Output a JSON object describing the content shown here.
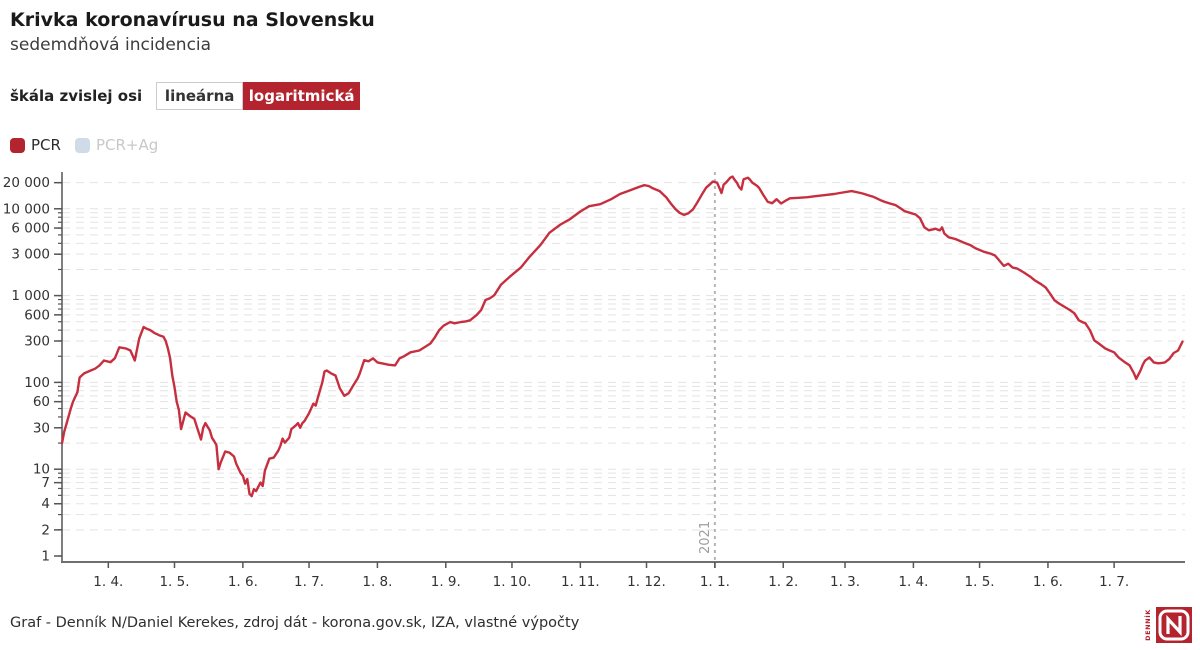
{
  "header": {
    "title": "Krivka koronavírusu na Slovensku",
    "subtitle": "sedemdňová incidencia"
  },
  "scale_toggle": {
    "label": "škála zvislej osi",
    "options": [
      {
        "label": "lineárna",
        "active": false
      },
      {
        "label": "logaritmická",
        "active": true
      }
    ]
  },
  "legend": [
    {
      "label": "PCR",
      "color": "#b3242f",
      "active": true
    },
    {
      "label": "PCR+Ag",
      "color": "#cfdce8",
      "active": false
    }
  ],
  "footer": {
    "credit": "Graf - Denník N/Daniel Kerekes, zdroj dát - korona.gov.sk, IZA, vlastné výpočty"
  },
  "logo": {
    "brand": "DENNÍK",
    "letter": "N",
    "color": "#b3242f"
  },
  "colors": {
    "brand_red": "#b3242f",
    "line_red": "#c62f3f",
    "grid": "#e3e3e3",
    "axis": "#6f6f6f",
    "tick_text": "#333333",
    "year_line": "#b5b5b5",
    "year_text": "#9e9e9e"
  },
  "chart_data": {
    "type": "line",
    "y_scale": "log",
    "grid": true,
    "x_start_date": "2020-03-11",
    "x_end_date": "2021-08-01",
    "ylim": [
      1,
      26000
    ],
    "y_ticks": [
      {
        "v": 1,
        "label": "1"
      },
      {
        "v": 2,
        "label": "2"
      },
      {
        "v": 4,
        "label": "4"
      },
      {
        "v": 7,
        "label": "7"
      },
      {
        "v": 10,
        "label": "10"
      },
      {
        "v": 30,
        "label": "30"
      },
      {
        "v": 60,
        "label": "60"
      },
      {
        "v": 100,
        "label": "100"
      },
      {
        "v": 300,
        "label": "300"
      },
      {
        "v": 600,
        "label": "600"
      },
      {
        "v": 1000,
        "label": "1 000"
      },
      {
        "v": 3000,
        "label": "3 000"
      },
      {
        "v": 6000,
        "label": "6 000"
      },
      {
        "v": 10000,
        "label": "10 000"
      },
      {
        "v": 20000,
        "label": "20 000"
      }
    ],
    "x_ticks": [
      {
        "day": 21,
        "label": "1. 4."
      },
      {
        "day": 51,
        "label": "1. 5."
      },
      {
        "day": 82,
        "label": "1. 6."
      },
      {
        "day": 112,
        "label": "1. 7."
      },
      {
        "day": 143,
        "label": "1. 8."
      },
      {
        "day": 174,
        "label": "1. 9."
      },
      {
        "day": 204,
        "label": "1. 10."
      },
      {
        "day": 235,
        "label": "1. 11."
      },
      {
        "day": 265,
        "label": "1. 12."
      },
      {
        "day": 296,
        "label": "1. 1."
      },
      {
        "day": 327,
        "label": "1. 2."
      },
      {
        "day": 355,
        "label": "1. 3."
      },
      {
        "day": 386,
        "label": "1. 4."
      },
      {
        "day": 416,
        "label": "1. 5."
      },
      {
        "day": 447,
        "label": "1. 6."
      },
      {
        "day": 477,
        "label": "1. 7."
      }
    ],
    "year_marker": {
      "label": "2021",
      "day": 296
    },
    "series": [
      {
        "name": "PCR",
        "color": "#c62f3f",
        "points": [
          [
            0,
            20
          ],
          [
            1,
            27
          ],
          [
            2,
            33
          ],
          [
            4,
            50
          ],
          [
            5,
            60
          ],
          [
            6,
            68
          ],
          [
            7,
            77
          ],
          [
            8,
            114
          ],
          [
            10,
            127
          ],
          [
            13,
            137
          ],
          [
            15,
            144
          ],
          [
            17,
            157
          ],
          [
            19,
            179
          ],
          [
            22,
            171
          ],
          [
            24,
            190
          ],
          [
            26,
            254
          ],
          [
            29,
            246
          ],
          [
            31,
            233
          ],
          [
            33,
            179
          ],
          [
            35,
            320
          ],
          [
            37,
            435
          ],
          [
            38,
            420
          ],
          [
            40,
            400
          ],
          [
            42,
            370
          ],
          [
            44,
            350
          ],
          [
            46,
            335
          ],
          [
            47,
            300
          ],
          [
            48,
            246
          ],
          [
            49,
            190
          ],
          [
            50,
            120
          ],
          [
            51,
            88
          ],
          [
            52,
            60
          ],
          [
            53,
            48
          ],
          [
            54,
            29
          ],
          [
            56,
            45
          ],
          [
            58,
            41
          ],
          [
            60,
            38
          ],
          [
            63,
            22
          ],
          [
            64,
            30
          ],
          [
            65,
            34
          ],
          [
            67,
            28
          ],
          [
            68,
            23
          ],
          [
            69,
            21
          ],
          [
            70,
            19
          ],
          [
            71,
            10
          ],
          [
            72,
            12
          ],
          [
            74,
            16
          ],
          [
            76,
            15.5
          ],
          [
            78,
            14
          ],
          [
            79,
            11.5
          ],
          [
            81,
            9
          ],
          [
            82,
            8.4
          ],
          [
            83,
            6.8
          ],
          [
            84,
            7.7
          ],
          [
            85,
            5.2
          ],
          [
            86,
            4.9
          ],
          [
            87,
            5.9
          ],
          [
            88,
            5.6
          ],
          [
            90,
            7
          ],
          [
            91,
            6.4
          ],
          [
            92,
            9.6
          ],
          [
            94,
            13.2
          ],
          [
            96,
            13.6
          ],
          [
            98,
            16.3
          ],
          [
            99,
            18.6
          ],
          [
            100,
            22.5
          ],
          [
            101,
            20.2
          ],
          [
            103,
            23
          ],
          [
            104,
            29
          ],
          [
            106,
            32
          ],
          [
            107,
            34
          ],
          [
            108,
            30
          ],
          [
            109,
            34
          ],
          [
            110,
            36
          ],
          [
            112,
            44
          ],
          [
            114,
            57
          ],
          [
            115,
            54
          ],
          [
            116,
            67
          ],
          [
            118,
            100
          ],
          [
            119,
            133
          ],
          [
            120,
            137
          ],
          [
            122,
            127
          ],
          [
            124,
            120
          ],
          [
            126,
            85
          ],
          [
            128,
            70
          ],
          [
            130,
            75
          ],
          [
            132,
            92
          ],
          [
            134,
            111
          ],
          [
            135,
            127
          ],
          [
            137,
            180
          ],
          [
            139,
            175
          ],
          [
            141,
            189
          ],
          [
            143,
            170
          ],
          [
            145,
            166
          ],
          [
            148,
            160
          ],
          [
            151,
            157
          ],
          [
            153,
            189
          ],
          [
            155,
            200
          ],
          [
            158,
            222
          ],
          [
            162,
            233
          ],
          [
            165,
            260
          ],
          [
            167,
            281
          ],
          [
            169,
            330
          ],
          [
            171,
            400
          ],
          [
            173,
            450
          ],
          [
            176,
            497
          ],
          [
            178,
            480
          ],
          [
            181,
            497
          ],
          [
            183,
            505
          ],
          [
            185,
            520
          ],
          [
            188,
            600
          ],
          [
            190,
            680
          ],
          [
            192,
            890
          ],
          [
            194,
            930
          ],
          [
            196,
            1010
          ],
          [
            199,
            1330
          ],
          [
            203,
            1650
          ],
          [
            208,
            2100
          ],
          [
            212,
            2800
          ],
          [
            217,
            3850
          ],
          [
            221,
            5300
          ],
          [
            226,
            6600
          ],
          [
            230,
            7500
          ],
          [
            235,
            9300
          ],
          [
            239,
            10700
          ],
          [
            244,
            11300
          ],
          [
            249,
            12900
          ],
          [
            253,
            14800
          ],
          [
            257,
            16100
          ],
          [
            262,
            18000
          ],
          [
            264,
            18700
          ],
          [
            266,
            18300
          ],
          [
            268,
            17200
          ],
          [
            271,
            16000
          ],
          [
            274,
            13500
          ],
          [
            276,
            11500
          ],
          [
            278,
            10000
          ],
          [
            280,
            9000
          ],
          [
            282,
            8500
          ],
          [
            284,
            8900
          ],
          [
            286,
            9800
          ],
          [
            288,
            11800
          ],
          [
            290,
            14500
          ],
          [
            292,
            17500
          ],
          [
            294,
            19400
          ],
          [
            295,
            20600
          ],
          [
            296,
            20300
          ],
          [
            297,
            20000
          ],
          [
            298,
            17500
          ],
          [
            299,
            15200
          ],
          [
            300,
            19000
          ],
          [
            301,
            20000
          ],
          [
            303,
            22800
          ],
          [
            304,
            23500
          ],
          [
            305,
            21500
          ],
          [
            306,
            20000
          ],
          [
            307,
            17800
          ],
          [
            308,
            16700
          ],
          [
            309,
            21900
          ],
          [
            311,
            22800
          ],
          [
            312,
            21500
          ],
          [
            313,
            20000
          ],
          [
            315,
            18500
          ],
          [
            316,
            17500
          ],
          [
            318,
            14400
          ],
          [
            320,
            12000
          ],
          [
            322,
            11600
          ],
          [
            324,
            12900
          ],
          [
            326,
            11500
          ],
          [
            328,
            12400
          ],
          [
            330,
            13200
          ],
          [
            334,
            13400
          ],
          [
            338,
            13600
          ],
          [
            342,
            14000
          ],
          [
            346,
            14400
          ],
          [
            350,
            14800
          ],
          [
            354,
            15400
          ],
          [
            358,
            16000
          ],
          [
            361,
            15400
          ],
          [
            363,
            15000
          ],
          [
            366,
            14200
          ],
          [
            368,
            13700
          ],
          [
            371,
            12600
          ],
          [
            373,
            12000
          ],
          [
            376,
            11400
          ],
          [
            378,
            11000
          ],
          [
            380,
            10200
          ],
          [
            382,
            9400
          ],
          [
            385,
            8900
          ],
          [
            387,
            8600
          ],
          [
            389,
            7800
          ],
          [
            391,
            6100
          ],
          [
            393,
            5650
          ],
          [
            395,
            5800
          ],
          [
            396,
            5900
          ],
          [
            397,
            5750
          ],
          [
            398,
            5650
          ],
          [
            399,
            6100
          ],
          [
            400,
            5200
          ],
          [
            402,
            4700
          ],
          [
            405,
            4490
          ],
          [
            409,
            4070
          ],
          [
            412,
            3800
          ],
          [
            414,
            3530
          ],
          [
            418,
            3200
          ],
          [
            421,
            3050
          ],
          [
            423,
            2900
          ],
          [
            425,
            2530
          ],
          [
            427,
            2200
          ],
          [
            429,
            2330
          ],
          [
            431,
            2100
          ],
          [
            433,
            2050
          ],
          [
            436,
            1850
          ],
          [
            439,
            1650
          ],
          [
            441,
            1500
          ],
          [
            444,
            1350
          ],
          [
            446,
            1240
          ],
          [
            448,
            1050
          ],
          [
            450,
            880
          ],
          [
            452,
            810
          ],
          [
            455,
            730
          ],
          [
            457,
            680
          ],
          [
            459,
            625
          ],
          [
            461,
            520
          ],
          [
            463,
            490
          ],
          [
            464,
            480
          ],
          [
            466,
            400
          ],
          [
            468,
            305
          ],
          [
            470,
            281
          ],
          [
            473,
            246
          ],
          [
            475,
            233
          ],
          [
            477,
            222
          ],
          [
            479,
            194
          ],
          [
            482,
            170
          ],
          [
            484,
            157
          ],
          [
            486,
            127
          ],
          [
            487,
            110
          ],
          [
            489,
            138
          ],
          [
            490,
            160
          ],
          [
            491,
            178
          ],
          [
            493,
            194
          ],
          [
            495,
            170
          ],
          [
            497,
            166
          ],
          [
            499,
            168
          ],
          [
            500,
            170
          ],
          [
            502,
            186
          ],
          [
            504,
            218
          ],
          [
            506,
            233
          ],
          [
            508,
            295
          ]
        ]
      },
      {
        "name": "PCR+Ag",
        "color": "#cfdce8",
        "points": [],
        "hidden": true
      }
    ]
  }
}
